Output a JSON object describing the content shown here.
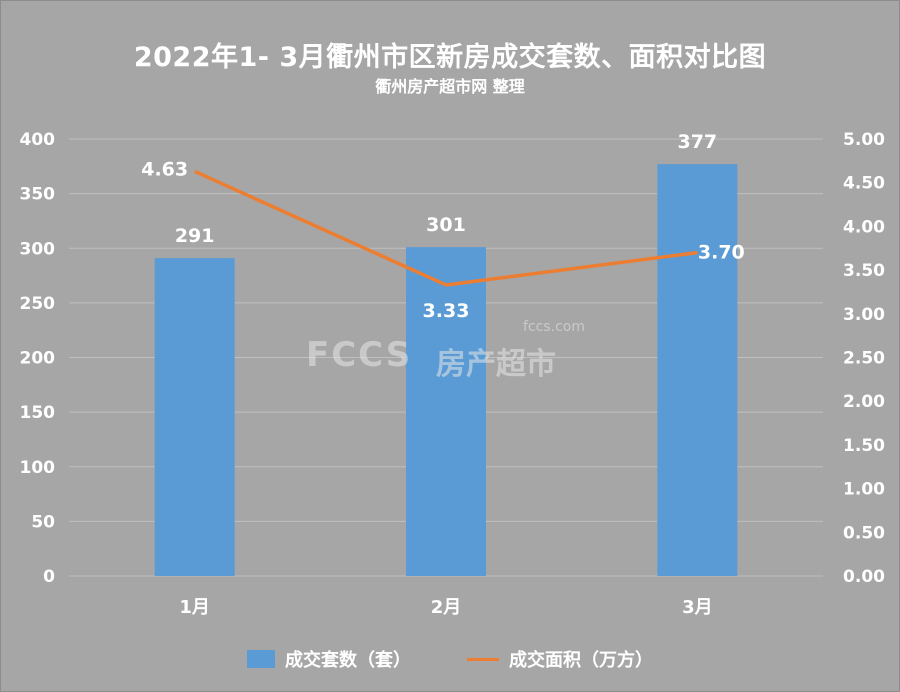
{
  "chart_data": {
    "type": "bar",
    "title": "2022年1- 3月衢州市区新房成交套数、面积对比图",
    "subtitle": "衢州房产超市网 整理",
    "categories": [
      "1月",
      "2月",
      "3月"
    ],
    "series": [
      {
        "name": "成交套数（套）",
        "type": "bar",
        "axis": "left",
        "values": [
          291,
          301,
          377
        ],
        "labels": [
          "291",
          "301",
          "377"
        ],
        "color": "#5b9bd5"
      },
      {
        "name": "成交面积（万方）",
        "type": "line",
        "axis": "right",
        "values": [
          4.63,
          3.33,
          3.7
        ],
        "labels": [
          "4.63",
          "3.33",
          "3.70"
        ],
        "color": "#ed7d31"
      }
    ],
    "y_left": {
      "min": 0,
      "max": 400,
      "step": 50,
      "ticks": [
        "0",
        "50",
        "100",
        "150",
        "200",
        "250",
        "300",
        "350",
        "400"
      ]
    },
    "y_right": {
      "min": 0,
      "max": 5,
      "step": 0.5,
      "ticks": [
        "0.00",
        "0.50",
        "1.00",
        "1.50",
        "2.00",
        "2.50",
        "3.00",
        "3.50",
        "4.00",
        "4.50",
        "5.00"
      ]
    },
    "grid": true,
    "legend_position": "bottom"
  },
  "watermark": {
    "logo_text": "FCCS",
    "cn_text": "房产超市",
    "url_text": "fccs.com"
  },
  "colors": {
    "background": "#a6a6a6",
    "bar": "#5b9bd5",
    "line": "#ed7d31",
    "grid": "#bfbfbf",
    "text": "#ffffff"
  }
}
